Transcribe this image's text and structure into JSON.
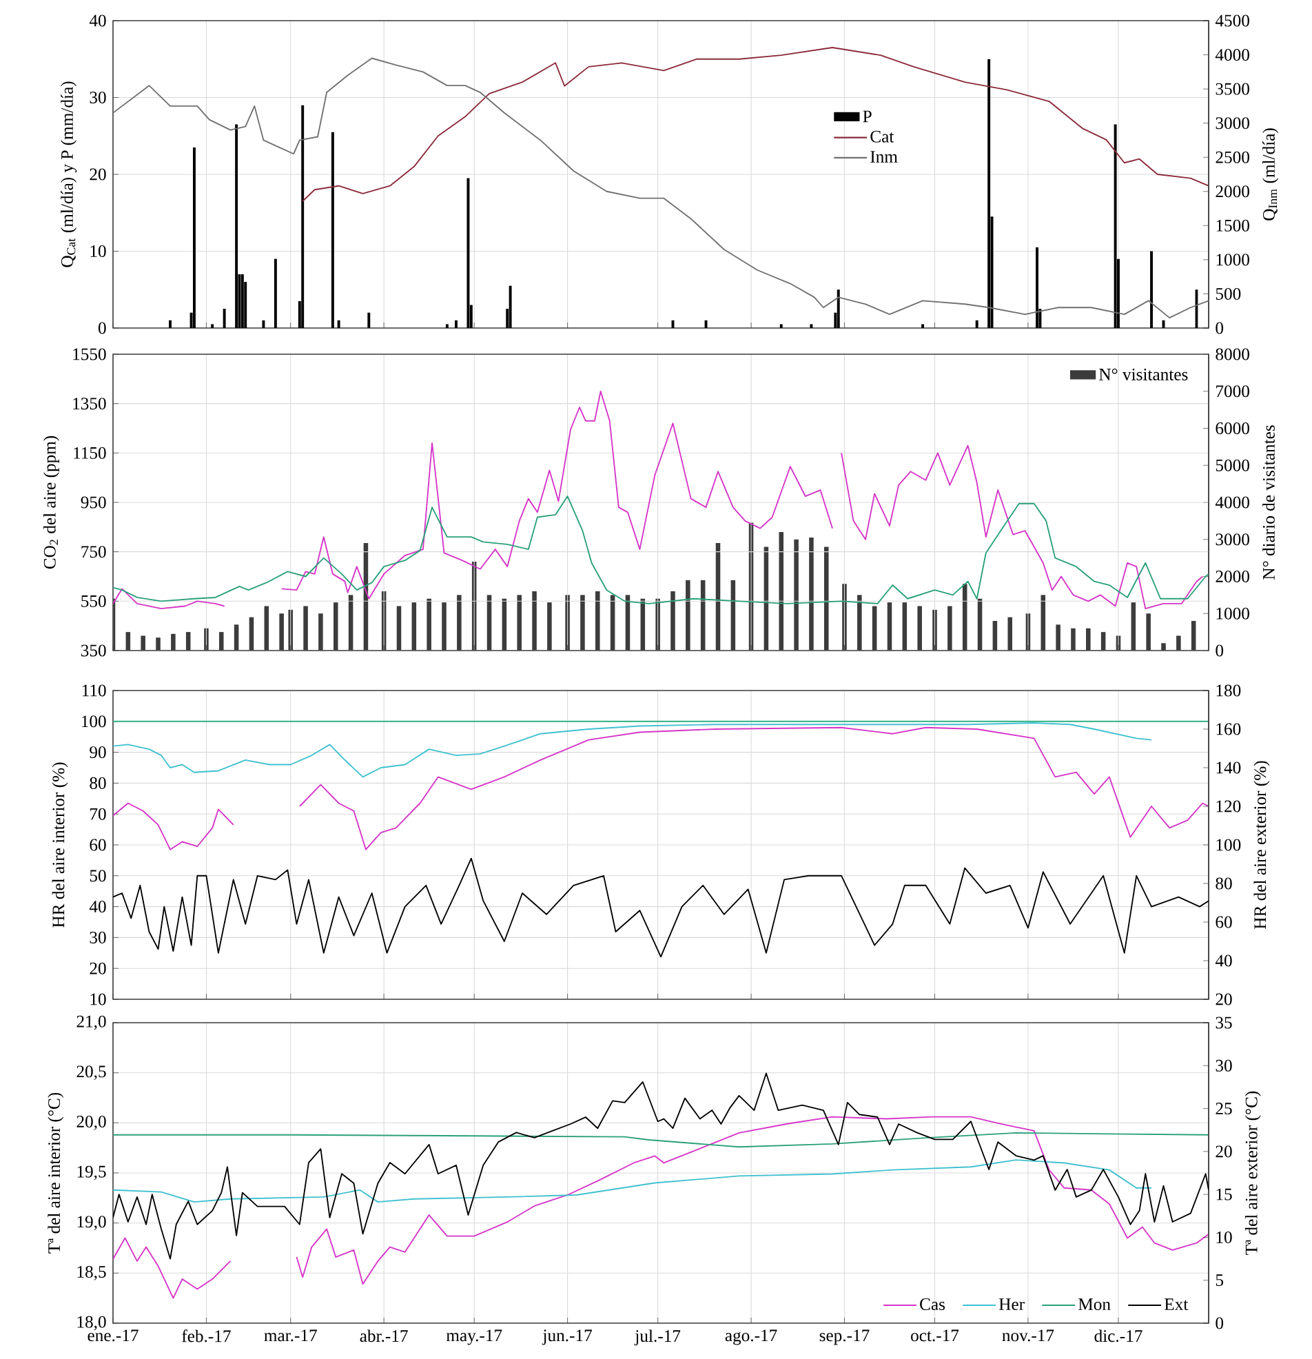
{
  "chart_data": [
    {
      "type": "line",
      "ylabel": "Q$_{Cat}$ (ml/día) y P (mm/día)",
      "y2label": "Q$_{Inm}$ (ml/día)",
      "xlim": [
        "2017-01-01",
        "2017-12-31"
      ],
      "xticks": [
        {
          "value": "2017-01-01",
          "label": null
        },
        {
          "value": "2017-02-01",
          "label": null
        },
        {
          "value": "2017-03-01",
          "label": null
        },
        {
          "value": "2017-04-01",
          "label": null
        },
        {
          "value": "2017-05-01",
          "label": null
        },
        {
          "value": "2017-06-01",
          "label": null
        },
        {
          "value": "2017-07-01",
          "label": null
        },
        {
          "value": "2017-08-01",
          "label": null
        },
        {
          "value": "2017-09-01",
          "label": null
        },
        {
          "value": "2017-10-01",
          "label": null
        },
        {
          "value": "2017-11-01",
          "label": null
        },
        {
          "value": "2017-12-01",
          "label": null
        }
      ],
      "ylim": [
        0,
        40
      ],
      "yticks": [
        0,
        10,
        20,
        30,
        40
      ],
      "y2lim": [
        0,
        4500
      ],
      "y2ticks": [
        0,
        500,
        1000,
        1500,
        2000,
        2500,
        3000,
        3500,
        4000,
        4500
      ],
      "grid": true,
      "legend": "right",
      "tick_labels": "y",
      "series": [
        {
          "name": "P",
          "type": "bar",
          "color": "#000000",
          "x": [
            "2017-01-20",
            "2017-01-27",
            "2017-01-28",
            "2017-02-03",
            "2017-02-07",
            "2017-02-11",
            "2017-02-12",
            "2017-02-13",
            "2017-02-14",
            "2017-02-20",
            "2017-02-24",
            "2017-03-04",
            "2017-03-05",
            "2017-03-15",
            "2017-03-17",
            "2017-03-27",
            "2017-04-22",
            "2017-04-25",
            "2017-04-29",
            "2017-04-30",
            "2017-05-12",
            "2017-05-13",
            "2017-07-06",
            "2017-07-17",
            "2017-08-11",
            "2017-08-21",
            "2017-08-29",
            "2017-08-30",
            "2017-09-27",
            "2017-10-15",
            "2017-10-19",
            "2017-10-20",
            "2017-11-04",
            "2017-11-05",
            "2017-11-30",
            "2017-12-01",
            "2017-12-12",
            "2017-12-16",
            "2017-12-27"
          ],
          "values": [
            1,
            2,
            23.5,
            0.5,
            2.5,
            26.5,
            7,
            7,
            6,
            1,
            9,
            3.5,
            29,
            25.5,
            1,
            2,
            0.5,
            1,
            19.5,
            3,
            2.5,
            5.5,
            1,
            1,
            0.5,
            0.5,
            2,
            5,
            0.5,
            1,
            35,
            14.5,
            10.5,
            2.5,
            26.5,
            9,
            10,
            1,
            5
          ]
        },
        {
          "name": "Cat",
          "color": "#8b2a3a",
          "x": [
            "2017-03-05",
            "2017-03-09",
            "2017-03-17",
            "2017-03-25",
            "2017-04-03",
            "2017-04-11",
            "2017-04-19",
            "2017-04-28",
            "2017-05-06",
            "2017-05-17",
            "2017-05-28",
            "2017-05-31",
            "2017-06-08",
            "2017-06-19",
            "2017-07-03",
            "2017-07-14",
            "2017-07-28",
            "2017-08-11",
            "2017-08-28",
            "2017-09-13",
            "2017-09-24",
            "2017-10-11",
            "2017-10-25",
            "2017-11-08",
            "2017-11-19",
            "2017-11-27",
            "2017-12-03",
            "2017-12-08",
            "2017-12-14",
            "2017-12-25",
            "2017-12-31"
          ],
          "values": [
            16.5,
            18,
            18.5,
            17.5,
            18.5,
            21,
            25,
            27.5,
            30.5,
            32,
            34.5,
            31.5,
            34,
            34.5,
            33.5,
            35,
            35,
            35.5,
            36.5,
            35.5,
            34,
            32,
            31,
            29.5,
            26,
            24.5,
            21.5,
            22,
            20,
            19.5,
            18.5
          ]
        },
        {
          "name": "Inm",
          "color": "#707070",
          "axis": "y2",
          "x": [
            "2017-01-01",
            "2017-01-07",
            "2017-01-13",
            "2017-01-20",
            "2017-01-29",
            "2017-02-02",
            "2017-02-09",
            "2017-02-14",
            "2017-02-17",
            "2017-02-20",
            "2017-02-25",
            "2017-03-02",
            "2017-03-04",
            "2017-03-10",
            "2017-03-13",
            "2017-03-20",
            "2017-03-28",
            "2017-04-05",
            "2017-04-14",
            "2017-04-22",
            "2017-04-28",
            "2017-05-03",
            "2017-05-11",
            "2017-05-23",
            "2017-06-03",
            "2017-06-14",
            "2017-06-25",
            "2017-07-03",
            "2017-07-12",
            "2017-07-23",
            "2017-08-03",
            "2017-08-14",
            "2017-08-22",
            "2017-08-25",
            "2017-08-30",
            "2017-09-08",
            "2017-09-16",
            "2017-09-27",
            "2017-10-11",
            "2017-10-19",
            "2017-10-31",
            "2017-11-11",
            "2017-11-22",
            "2017-12-03",
            "2017-12-11",
            "2017-12-18",
            "2017-12-25",
            "2017-12-31"
          ],
          "values": [
            3150,
            3350,
            3550,
            3250,
            3250,
            3050,
            2900,
            2950,
            3250,
            2750,
            2650,
            2550,
            2750,
            2800,
            3450,
            3700,
            3950,
            3850,
            3750,
            3550,
            3550,
            3450,
            3150,
            2750,
            2300,
            2000,
            1900,
            1900,
            1600,
            1150,
            850,
            650,
            450,
            300,
            450,
            350,
            200,
            400,
            350,
            300,
            200,
            300,
            300,
            200,
            400,
            150,
            300,
            400
          ]
        }
      ]
    },
    {
      "type": "line",
      "ylabel": "CO$_{2}$ del aire (ppm)",
      "y2label": "N° diario de visitantes",
      "xlim": [
        "2017-01-01",
        "2017-12-31"
      ],
      "xticks": [
        {
          "value": "2017-01-01",
          "label": null
        },
        {
          "value": "2017-02-01",
          "label": null
        },
        {
          "value": "2017-03-01",
          "label": null
        },
        {
          "value": "2017-04-01",
          "label": null
        },
        {
          "value": "2017-05-01",
          "label": null
        },
        {
          "value": "2017-06-01",
          "label": null
        },
        {
          "value": "2017-07-01",
          "label": null
        },
        {
          "value": "2017-08-01",
          "label": null
        },
        {
          "value": "2017-09-01",
          "label": null
        },
        {
          "value": "2017-10-01",
          "label": null
        },
        {
          "value": "2017-11-01",
          "label": null
        },
        {
          "value": "2017-12-01",
          "label": null
        }
      ],
      "ylim": [
        350,
        1550
      ],
      "yticks": [
        350,
        550,
        750,
        950,
        1150,
        1350,
        1550
      ],
      "y2lim": [
        0,
        8000
      ],
      "y2ticks": [
        0,
        1000,
        2000,
        3000,
        4000,
        5000,
        6000,
        7000,
        8000
      ],
      "grid": true,
      "legend": "top right",
      "tick_labels": "y",
      "series": [
        {
          "name": "N° visitantes",
          "type": "bar",
          "axis": "y2",
          "color": "#3c3c3c",
          "x": [
            "2017-01-01",
            "2017-01-06",
            "2017-01-11",
            "2017-01-16",
            "2017-01-21",
            "2017-01-26",
            "2017-02-01",
            "2017-02-06",
            "2017-02-11",
            "2017-02-16",
            "2017-02-21",
            "2017-02-26",
            "2017-03-01",
            "2017-03-06",
            "2017-03-11",
            "2017-03-16",
            "2017-03-21",
            "2017-03-26",
            "2017-04-01",
            "2017-04-06",
            "2017-04-11",
            "2017-04-16",
            "2017-04-21",
            "2017-04-26",
            "2017-05-01",
            "2017-05-06",
            "2017-05-11",
            "2017-05-16",
            "2017-05-21",
            "2017-05-26",
            "2017-06-01",
            "2017-06-06",
            "2017-06-11",
            "2017-06-16",
            "2017-06-21",
            "2017-06-26",
            "2017-07-01",
            "2017-07-06",
            "2017-07-11",
            "2017-07-16",
            "2017-07-21",
            "2017-07-26",
            "2017-08-01",
            "2017-08-06",
            "2017-08-11",
            "2017-08-16",
            "2017-08-21",
            "2017-08-26",
            "2017-09-01",
            "2017-09-06",
            "2017-09-11",
            "2017-09-16",
            "2017-09-21",
            "2017-09-26",
            "2017-10-01",
            "2017-10-06",
            "2017-10-11",
            "2017-10-16",
            "2017-10-21",
            "2017-10-26",
            "2017-11-01",
            "2017-11-06",
            "2017-11-11",
            "2017-11-16",
            "2017-11-21",
            "2017-11-26",
            "2017-12-01",
            "2017-12-06",
            "2017-12-11",
            "2017-12-16",
            "2017-12-21",
            "2017-12-26"
          ],
          "values": [
            1400,
            500,
            400,
            350,
            450,
            500,
            600,
            500,
            700,
            900,
            1200,
            1000,
            1100,
            1200,
            1000,
            1300,
            1500,
            2900,
            1600,
            1200,
            1300,
            1400,
            1300,
            1500,
            2400,
            1500,
            1400,
            1500,
            1600,
            1300,
            1500,
            1500,
            1600,
            1500,
            1500,
            1400,
            1400,
            1600,
            1900,
            1900,
            2900,
            1900,
            3450,
            2800,
            3200,
            3000,
            3050,
            2800,
            1800,
            1500,
            1200,
            1300,
            1300,
            1200,
            1100,
            1200,
            1800,
            1400,
            800,
            900,
            1000,
            1500,
            700,
            600,
            600,
            500,
            400,
            1300,
            1000,
            200,
            400,
            800
          ]
        },
        {
          "color": "#d535c8",
          "x": [
            "2017-01-01",
            "2017-01-04",
            "2017-01-09",
            "2017-01-17",
            "2017-01-25",
            "2017-01-29",
            "2017-02-04",
            "2017-02-07",
            "2017-02-16",
            "2017-02-26",
            "2017-03-03",
            "2017-03-06",
            "2017-03-09",
            "2017-03-12",
            "2017-03-15",
            "2017-03-19",
            "2017-03-20",
            "2017-03-23",
            "2017-03-27",
            "2017-04-01",
            "2017-04-08",
            "2017-04-14",
            "2017-04-17",
            "2017-04-21",
            "2017-04-27",
            "2017-05-03",
            "2017-05-08",
            "2017-05-12",
            "2017-05-16",
            "2017-05-19",
            "2017-05-22",
            "2017-05-26",
            "2017-05-29",
            "2017-06-02",
            "2017-06-05",
            "2017-06-07",
            "2017-06-10",
            "2017-06-12",
            "2017-06-15",
            "2017-06-18",
            "2017-06-21",
            "2017-06-25",
            "2017-06-30",
            "2017-07-06",
            "2017-07-12",
            "2017-07-17",
            "2017-07-21",
            "2017-07-26",
            "2017-07-30",
            "2017-08-04",
            "2017-08-08",
            "2017-08-14",
            "2017-08-19",
            "2017-08-24",
            "2017-08-28",
            "2017-08-29",
            "2017-08-31",
            "2017-09-04",
            "2017-09-08",
            "2017-09-11",
            "2017-09-16",
            "2017-09-19",
            "2017-09-23",
            "2017-09-28",
            "2017-10-02",
            "2017-10-06",
            "2017-10-12",
            "2017-10-15",
            "2017-10-18",
            "2017-10-22",
            "2017-10-27",
            "2017-10-31",
            "2017-11-06",
            "2017-11-09",
            "2017-11-12",
            "2017-11-16",
            "2017-11-21",
            "2017-11-25",
            "2017-11-30",
            "2017-12-04",
            "2017-12-07",
            "2017-12-10",
            "2017-12-16",
            "2017-12-22",
            "2017-12-27",
            "2017-12-29"
          ],
          "values": [
            540,
            600,
            540,
            520,
            530,
            550,
            540,
            530,
            null,
            600,
            595,
            670,
            660,
            810,
            660,
            630,
            585,
            690,
            560,
            660,
            735,
            760,
            1190,
            745,
            715,
            680,
            760,
            690,
            875,
            965,
            910,
            1080,
            955,
            1245,
            1335,
            1280,
            1280,
            1400,
            1280,
            930,
            910,
            760,
            1060,
            1270,
            965,
            930,
            1075,
            930,
            875,
            845,
            890,
            1095,
            975,
            1000,
            845,
            null,
            1150,
            875,
            800,
            985,
            855,
            1020,
            1075,
            1040,
            1150,
            1020,
            1180,
            1030,
            810,
            1000,
            820,
            835,
            705,
            595,
            650,
            575,
            550,
            575,
            530,
            705,
            690,
            520,
            540,
            540,
            630,
            650
          ]
        },
        {
          "color": "#2aa07a",
          "x": [
            "2017-01-01",
            "2017-01-04",
            "2017-01-09",
            "2017-01-17",
            "2017-01-28",
            "2017-02-04",
            "2017-02-12",
            "2017-02-15",
            "2017-02-21",
            "2017-02-28",
            "2017-03-06",
            "2017-03-12",
            "2017-03-18",
            "2017-03-23",
            "2017-03-28",
            "2017-04-01",
            "2017-04-08",
            "2017-04-13",
            "2017-04-17",
            "2017-04-22",
            "2017-04-30",
            "2017-05-04",
            "2017-05-12",
            "2017-05-19",
            "2017-05-22",
            "2017-05-28",
            "2017-06-01",
            "2017-06-06",
            "2017-06-09",
            "2017-06-14",
            "2017-06-20",
            "2017-06-28",
            "2017-07-13",
            "2017-07-28",
            "2017-08-13",
            "2017-08-31",
            "2017-09-12",
            "2017-09-17",
            "2017-09-22",
            "2017-10-01",
            "2017-10-07",
            "2017-10-12",
            "2017-10-15",
            "2017-10-18",
            "2017-10-24",
            "2017-10-29",
            "2017-11-03",
            "2017-11-07",
            "2017-11-10",
            "2017-11-17",
            "2017-11-23",
            "2017-11-28",
            "2017-12-04",
            "2017-12-10",
            "2017-12-15",
            "2017-12-24",
            "2017-12-30",
            "2017-12-31"
          ],
          "values": [
            605,
            595,
            565,
            550,
            560,
            565,
            610,
            595,
            625,
            670,
            650,
            725,
            660,
            595,
            625,
            690,
            715,
            755,
            930,
            810,
            810,
            790,
            780,
            760,
            890,
            900,
            975,
            835,
            705,
            595,
            550,
            540,
            560,
            550,
            540,
            550,
            540,
            615,
            560,
            595,
            575,
            630,
            560,
            745,
            855,
            945,
            945,
            875,
            725,
            690,
            630,
            615,
            565,
            705,
            560,
            560,
            650,
            660
          ]
        }
      ]
    },
    {
      "type": "line",
      "ylabel": "HR del aire interior (%)",
      "y2label": "HR del aire exterior (%)",
      "xlim": [
        "2017-01-01",
        "2017-12-31"
      ],
      "xticks": [
        {
          "value": "2017-01-01",
          "label": null
        },
        {
          "value": "2017-02-01",
          "label": null
        },
        {
          "value": "2017-03-01",
          "label": null
        },
        {
          "value": "2017-04-01",
          "label": null
        },
        {
          "value": "2017-05-01",
          "label": null
        },
        {
          "value": "2017-06-01",
          "label": null
        },
        {
          "value": "2017-07-01",
          "label": null
        },
        {
          "value": "2017-08-01",
          "label": null
        },
        {
          "value": "2017-09-01",
          "label": null
        },
        {
          "value": "2017-10-01",
          "label": null
        },
        {
          "value": "2017-11-01",
          "label": null
        },
        {
          "value": "2017-12-01",
          "label": null
        }
      ],
      "ylim": [
        10,
        110
      ],
      "yticks": [
        10,
        20,
        30,
        40,
        50,
        60,
        70,
        80,
        90,
        100,
        110
      ],
      "y2lim": [
        20,
        180
      ],
      "y2ticks": [
        20,
        40,
        60,
        80,
        100,
        120,
        140,
        160,
        180
      ],
      "grid": true,
      "tick_labels": "y",
      "series": [
        {
          "color": "#d535c8",
          "x": [
            "2017-01-01",
            "2017-01-06",
            "2017-01-11",
            "2017-01-16",
            "2017-01-20",
            "2017-01-24",
            "2017-01-29",
            "2017-02-03",
            "2017-02-05",
            "2017-02-10",
            "2017-02-20",
            "2017-03-04",
            "2017-03-11",
            "2017-03-17",
            "2017-03-22",
            "2017-03-26",
            "2017-03-31",
            "2017-04-05",
            "2017-04-13",
            "2017-04-19",
            "2017-04-30",
            "2017-05-11",
            "2017-05-23",
            "2017-06-08",
            "2017-06-25",
            "2017-07-20",
            "2017-08-31",
            "2017-09-17",
            "2017-09-28",
            "2017-10-15",
            "2017-11-03",
            "2017-11-10",
            "2017-11-17",
            "2017-11-23",
            "2017-11-28",
            "2017-12-03",
            "2017-12-05",
            "2017-12-12",
            "2017-12-18",
            "2017-12-24",
            "2017-12-29",
            "2017-12-31"
          ],
          "values": [
            69.5,
            73.5,
            71,
            66.5,
            58.5,
            61,
            59.5,
            65.5,
            71.5,
            66.5,
            null,
            72.5,
            79.5,
            73.5,
            71,
            58.5,
            64,
            65.5,
            73.5,
            82,
            78,
            82,
            87.5,
            94,
            96.5,
            97.5,
            98,
            96,
            98,
            97.5,
            94.5,
            82,
            83.5,
            76.5,
            82,
            68,
            62.5,
            72.5,
            65.5,
            68,
            73.5,
            72.5
          ]
        },
        {
          "color": "#40c0d0",
          "x": [
            "2017-01-01",
            "2017-01-06",
            "2017-01-13",
            "2017-01-17",
            "2017-01-20",
            "2017-01-24",
            "2017-01-28",
            "2017-02-05",
            "2017-02-14",
            "2017-02-22",
            "2017-03-01",
            "2017-03-08",
            "2017-03-14",
            "2017-03-19",
            "2017-03-25",
            "2017-03-31",
            "2017-04-08",
            "2017-04-16",
            "2017-04-25",
            "2017-05-03",
            "2017-05-11",
            "2017-05-23",
            "2017-06-08",
            "2017-06-25",
            "2017-07-20",
            "2017-08-31",
            "2017-10-12",
            "2017-11-03",
            "2017-11-15",
            "2017-11-23",
            "2017-12-07",
            "2017-12-12"
          ],
          "values": [
            92,
            92.5,
            91,
            89,
            85,
            86,
            83.5,
            84,
            87.5,
            86,
            86,
            89,
            92.5,
            87.5,
            82,
            85,
            86,
            91,
            89,
            89.5,
            92,
            96,
            97.5,
            98.5,
            99,
            99,
            99,
            99.5,
            99,
            97.5,
            94.5,
            94
          ]
        },
        {
          "color": "#2ab080",
          "x": [
            "2017-01-01",
            "2017-07-01",
            "2017-12-31"
          ],
          "values": [
            100,
            100,
            100
          ]
        },
        {
          "color": "#000000",
          "axis": "y2",
          "x": [
            "2017-01-01",
            "2017-01-04",
            "2017-01-07",
            "2017-01-10",
            "2017-01-13",
            "2017-01-16",
            "2017-01-18",
            "2017-01-21",
            "2017-01-24",
            "2017-01-27",
            "2017-01-29",
            "2017-02-01",
            "2017-02-05",
            "2017-02-10",
            "2017-02-14",
            "2017-02-18",
            "2017-02-24",
            "2017-02-28",
            "2017-03-03",
            "2017-03-07",
            "2017-03-12",
            "2017-03-17",
            "2017-03-22",
            "2017-03-28",
            "2017-04-02",
            "2017-04-08",
            "2017-04-15",
            "2017-04-20",
            "2017-04-26",
            "2017-04-30",
            "2017-05-04",
            "2017-05-11",
            "2017-05-17",
            "2017-05-25",
            "2017-06-03",
            "2017-06-13",
            "2017-06-17",
            "2017-06-25",
            "2017-07-02",
            "2017-07-09",
            "2017-07-16",
            "2017-07-23",
            "2017-07-31",
            "2017-08-06",
            "2017-08-12",
            "2017-08-20",
            "2017-08-31",
            "2017-09-11",
            "2017-09-17",
            "2017-09-21",
            "2017-09-28",
            "2017-10-06",
            "2017-10-11",
            "2017-10-18",
            "2017-10-26",
            "2017-11-01",
            "2017-11-06",
            "2017-11-15",
            "2017-11-26",
            "2017-12-03",
            "2017-12-07",
            "2017-12-12",
            "2017-12-21",
            "2017-12-28",
            "2017-12-31"
          ],
          "values": [
            73,
            75,
            62,
            79,
            55,
            46,
            68,
            45,
            73,
            48,
            84,
            84,
            44,
            82,
            59,
            84,
            82,
            87,
            59,
            82,
            44,
            73,
            53,
            75,
            44,
            68,
            79,
            59,
            79,
            93,
            71,
            50,
            75,
            64,
            79,
            84,
            55,
            66,
            42,
            68,
            79,
            64,
            77,
            44,
            82,
            84,
            84,
            48,
            59,
            79,
            79,
            59,
            88,
            75,
            79,
            57,
            86,
            59,
            84,
            44,
            84,
            68,
            73,
            68,
            71
          ]
        }
      ]
    },
    {
      "type": "line",
      "ylabel": "Tª del aire interior (°C)",
      "y2label": "Tª del aire exterior (°C)",
      "xlim": [
        "2017-01-01",
        "2017-12-31"
      ],
      "xticks": [
        {
          "value": "2017-01-01",
          "label": "ene.-17"
        },
        {
          "value": "2017-02-01",
          "label": "feb.-17"
        },
        {
          "value": "2017-03-01",
          "label": "mar.-17"
        },
        {
          "value": "2017-04-01",
          "label": "abr.-17"
        },
        {
          "value": "2017-05-01",
          "label": "may.-17"
        },
        {
          "value": "2017-06-01",
          "label": "jun.-17"
        },
        {
          "value": "2017-07-01",
          "label": "jul.-17"
        },
        {
          "value": "2017-08-01",
          "label": "ago.-17"
        },
        {
          "value": "2017-09-01",
          "label": "sep.-17"
        },
        {
          "value": "2017-10-01",
          "label": "oct.-17"
        },
        {
          "value": "2017-11-01",
          "label": "nov.-17"
        },
        {
          "value": "2017-12-01",
          "label": "dic.-17"
        }
      ],
      "ylim": [
        18,
        21
      ],
      "yticks": [
        {
          "value": 18,
          "label": "18,0"
        },
        {
          "value": 18.5,
          "label": "18,5"
        },
        {
          "value": 19,
          "label": "19,0"
        },
        {
          "value": 19.5,
          "label": "19,5"
        },
        {
          "value": 20,
          "label": "20,0"
        },
        {
          "value": 20.5,
          "label": "20,5"
        },
        {
          "value": 21,
          "label": "21,0"
        }
      ],
      "y2lim": [
        0,
        35
      ],
      "y2ticks": [
        0,
        5,
        10,
        15,
        20,
        25,
        30,
        35
      ],
      "grid": true,
      "legend": "bottom right",
      "series": [
        {
          "name": "Cas",
          "color": "#d535c8",
          "x": [
            "2017-01-01",
            "2017-01-05",
            "2017-01-09",
            "2017-01-12",
            "2017-01-16",
            "2017-01-21",
            "2017-01-24",
            "2017-01-29",
            "2017-02-03",
            "2017-02-09",
            "2017-02-20",
            "2017-03-03",
            "2017-03-05",
            "2017-03-08",
            "2017-03-13",
            "2017-03-16",
            "2017-03-22",
            "2017-03-25",
            "2017-03-30",
            "2017-04-03",
            "2017-04-08",
            "2017-04-16",
            "2017-04-22",
            "2017-05-01",
            "2017-05-12",
            "2017-05-21",
            "2017-06-01",
            "2017-06-11",
            "2017-06-23",
            "2017-06-30",
            "2017-07-03",
            "2017-07-28",
            "2017-08-13",
            "2017-08-28",
            "2017-09-15",
            "2017-09-30",
            "2017-10-13",
            "2017-10-23",
            "2017-11-03",
            "2017-11-08",
            "2017-11-13",
            "2017-11-22",
            "2017-11-28",
            "2017-12-04",
            "2017-12-09",
            "2017-12-13",
            "2017-12-19",
            "2017-12-27",
            "2017-12-31"
          ],
          "values": [
            18.64,
            18.85,
            18.62,
            18.76,
            18.57,
            18.25,
            18.44,
            18.34,
            18.44,
            18.62,
            null,
            18.66,
            18.46,
            18.76,
            18.94,
            18.66,
            18.73,
            18.39,
            18.62,
            18.76,
            18.71,
            19.08,
            18.87,
            18.87,
            19.01,
            19.17,
            19.28,
            19.42,
            19.6,
            19.67,
            19.6,
            19.9,
            19.99,
            20.06,
            20.04,
            20.06,
            20.06,
            19.99,
            19.92,
            19.53,
            19.35,
            19.33,
            19.19,
            18.85,
            18.96,
            18.8,
            18.73,
            18.8,
            18.89
          ]
        },
        {
          "name": "Her",
          "color": "#40c0d0",
          "x": [
            "2017-01-01",
            "2017-01-17",
            "2017-01-28",
            "2017-02-09",
            "2017-03-12",
            "2017-03-24",
            "2017-03-30",
            "2017-04-11",
            "2017-05-12",
            "2017-06-04",
            "2017-06-30",
            "2017-07-28",
            "2017-08-28",
            "2017-09-17",
            "2017-10-13",
            "2017-10-28",
            "2017-11-13",
            "2017-11-28",
            "2017-12-07",
            "2017-12-12"
          ],
          "values": [
            19.33,
            19.31,
            19.21,
            19.24,
            19.26,
            19.33,
            19.21,
            19.24,
            19.26,
            19.28,
            19.4,
            19.47,
            19.49,
            19.53,
            19.56,
            19.63,
            19.6,
            19.53,
            19.35,
            19.35
          ]
        },
        {
          "name": "Mon",
          "color": "#2aa07a",
          "x": [
            "2017-01-01",
            "2017-03-02",
            "2017-05-01",
            "2017-06-20",
            "2017-06-28",
            "2017-07-28",
            "2017-08-28",
            "2017-09-28",
            "2017-10-28",
            "2017-11-28",
            "2017-12-31"
          ],
          "values": [
            19.88,
            19.88,
            19.87,
            19.86,
            19.83,
            19.76,
            19.79,
            19.85,
            19.9,
            19.89,
            19.88
          ]
        },
        {
          "name": "Ext",
          "color": "#000000",
          "axis": "y2",
          "x": [
            "2017-01-01",
            "2017-01-03",
            "2017-01-06",
            "2017-01-09",
            "2017-01-12",
            "2017-01-14",
            "2017-01-17",
            "2017-01-20",
            "2017-01-22",
            "2017-01-26",
            "2017-01-29",
            "2017-02-03",
            "2017-02-06",
            "2017-02-08",
            "2017-02-11",
            "2017-02-13",
            "2017-02-18",
            "2017-02-27",
            "2017-03-04",
            "2017-03-07",
            "2017-03-11",
            "2017-03-14",
            "2017-03-18",
            "2017-03-22",
            "2017-03-25",
            "2017-03-30",
            "2017-04-03",
            "2017-04-08",
            "2017-04-16",
            "2017-04-19",
            "2017-04-25",
            "2017-04-29",
            "2017-05-04",
            "2017-05-09",
            "2017-05-15",
            "2017-05-21",
            "2017-05-27",
            "2017-06-02",
            "2017-06-07",
            "2017-06-11",
            "2017-06-16",
            "2017-06-20",
            "2017-06-26",
            "2017-07-01",
            "2017-07-03",
            "2017-07-06",
            "2017-07-10",
            "2017-07-15",
            "2017-07-19",
            "2017-07-22",
            "2017-07-25",
            "2017-07-28",
            "2017-08-02",
            "2017-08-06",
            "2017-08-10",
            "2017-08-18",
            "2017-08-25",
            "2017-08-30",
            "2017-09-02",
            "2017-09-06",
            "2017-09-12",
            "2017-09-16",
            "2017-09-19",
            "2017-09-25",
            "2017-10-01",
            "2017-10-07",
            "2017-10-13",
            "2017-10-19",
            "2017-10-22",
            "2017-10-28",
            "2017-11-03",
            "2017-11-06",
            "2017-11-10",
            "2017-11-14",
            "2017-11-17",
            "2017-11-22",
            "2017-11-26",
            "2017-12-01",
            "2017-12-05",
            "2017-12-08",
            "2017-12-10",
            "2017-12-13",
            "2017-12-16",
            "2017-12-19",
            "2017-12-25",
            "2017-12-30",
            "2017-12-31"
          ],
          "values": [
            12.3,
            15,
            11.8,
            14.7,
            11.5,
            15,
            11,
            7.5,
            11.5,
            14.2,
            11.5,
            13.1,
            15.2,
            18.2,
            10.2,
            15.2,
            13.6,
            13.6,
            11.5,
            18.7,
            20.3,
            12.3,
            17.4,
            16.3,
            10.4,
            16.3,
            18.7,
            17.4,
            20.8,
            17.4,
            18.4,
            12.6,
            18.4,
            21.1,
            22.2,
            21.6,
            22.4,
            23.2,
            24,
            22.7,
            25.9,
            25.7,
            28.1,
            23.5,
            23.8,
            22.7,
            26.2,
            23.8,
            24.8,
            23.2,
            25.1,
            26.5,
            24.8,
            29.1,
            24.8,
            25.4,
            24.8,
            20.8,
            25.7,
            24.3,
            24,
            20.8,
            23.2,
            22.2,
            21.4,
            21.4,
            23.5,
            17.9,
            21.1,
            19.5,
            19,
            19.5,
            15.5,
            17.9,
            14.7,
            15.5,
            17.9,
            14.7,
            11.5,
            13.1,
            17.4,
            11.8,
            16,
            11.8,
            12.8,
            17.4,
            15.5
          ]
        }
      ]
    }
  ]
}
